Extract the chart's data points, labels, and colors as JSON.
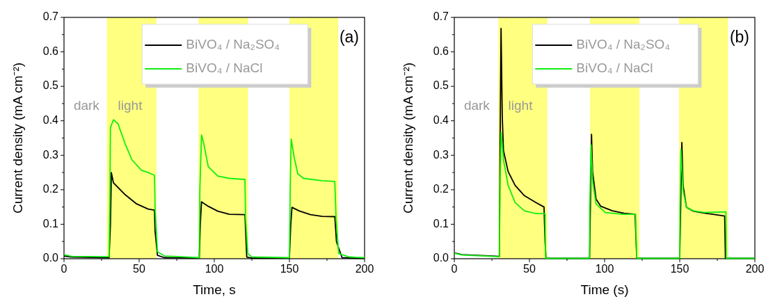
{
  "chart_data": [
    {
      "type": "line",
      "xlabel": "Time, s",
      "ylabel": "Current density (mA cm⁻²)",
      "xlim": [
        0,
        200
      ],
      "ylim": [
        0,
        0.7
      ],
      "xticks": [
        0,
        50,
        100,
        150,
        200
      ],
      "yticks": [
        {
          "value": 0,
          "label": "0.0"
        },
        {
          "value": 0.1,
          "label": "0.1"
        },
        {
          "value": 0.2,
          "label": "0.2"
        },
        {
          "value": 0.3,
          "label": "0.3"
        },
        {
          "value": 0.4,
          "label": "0.4"
        },
        {
          "value": 0.5,
          "label": "0.5"
        },
        {
          "value": 0.6,
          "label": "0.6"
        },
        {
          "value": 0.7,
          "label": "0.7"
        }
      ],
      "legend": "top right",
      "grid": false,
      "line_style": "solid",
      "bands": [
        {
          "axis": "x",
          "from": 28.5,
          "to": 61.5,
          "color": "#ffff80"
        },
        {
          "axis": "x",
          "from": 89.5,
          "to": 122.5,
          "color": "#ffff80"
        },
        {
          "axis": "x",
          "from": 150,
          "to": 182.5,
          "color": "#ffff80"
        }
      ],
      "annotations": [
        "(a)",
        "dark",
        "light"
      ],
      "series": [
        {
          "name": "BiVO₄ / Na₂SO₄",
          "color": "#000000",
          "x": [
            0,
            5,
            30,
            30.9,
            31.5,
            32.9,
            40.6,
            48.3,
            56,
            60.2,
            60.6,
            62.2,
            66.8,
            90,
            90.7,
            91.5,
            96,
            102.3,
            110,
            120.4,
            121.6,
            125,
            150,
            150.9,
            151.7,
            156.3,
            164,
            171.8,
            180.2,
            181.3,
            185,
            200
          ],
          "values": [
            0.008,
            0.005,
            0.003,
            0.1,
            0.25,
            0.22,
            0.186,
            0.159,
            0.144,
            0.141,
            0.08,
            0.01,
            0.003,
            0.002,
            0.1,
            0.165,
            0.152,
            0.138,
            0.129,
            0.128,
            0.005,
            0.002,
            0.002,
            0.1,
            0.149,
            0.139,
            0.128,
            0.123,
            0.122,
            0.05,
            0.003,
            0.001
          ]
        },
        {
          "name": "BiVO₄ / NaCl",
          "color": "#11ee11",
          "x": [
            0,
            5,
            30,
            30.6,
            30.9,
            32.9,
            36,
            40.6,
            45.2,
            51.4,
            56,
            60.2,
            60.6,
            62.2,
            66.8,
            90,
            90.4,
            91.5,
            93,
            96,
            102.3,
            110,
            120.4,
            120.8,
            122.3,
            125,
            150,
            150.5,
            151.2,
            153.2,
            155.6,
            159.4,
            171.8,
            180.2,
            181,
            182.8,
            190,
            200
          ],
          "values": [
            0.012,
            0.007,
            0.006,
            0.2,
            0.38,
            0.403,
            0.391,
            0.334,
            0.287,
            0.257,
            0.25,
            0.242,
            0.15,
            0.02,
            0.008,
            0.003,
            0.2,
            0.359,
            0.334,
            0.267,
            0.24,
            0.233,
            0.23,
            0.12,
            0.015,
            0.005,
            0.003,
            0.2,
            0.347,
            0.293,
            0.246,
            0.233,
            0.226,
            0.224,
            0.12,
            0.015,
            0.005,
            0.003
          ]
        }
      ]
    },
    {
      "type": "line",
      "xlabel": "Time (s)",
      "ylabel": "Current density (mA cm⁻²)",
      "xlim": [
        0,
        200
      ],
      "ylim": [
        0,
        0.7
      ],
      "xticks": [
        0,
        50,
        100,
        150,
        200
      ],
      "yticks": [
        {
          "value": 0,
          "label": "0.0"
        },
        {
          "value": 0.1,
          "label": "0.1"
        },
        {
          "value": 0.2,
          "label": "0.2"
        },
        {
          "value": 0.3,
          "label": "0.3"
        },
        {
          "value": 0.4,
          "label": "0.4"
        },
        {
          "value": 0.5,
          "label": "0.5"
        },
        {
          "value": 0.6,
          "label": "0.6"
        },
        {
          "value": 0.7,
          "label": "0.7"
        }
      ],
      "legend": "top right",
      "grid": false,
      "line_style": "solid",
      "bands": [
        {
          "axis": "x",
          "from": 29.3,
          "to": 61.9,
          "color": "#ffff80"
        },
        {
          "axis": "x",
          "from": 90.3,
          "to": 123.2,
          "color": "#ffff80"
        },
        {
          "axis": "x",
          "from": 149.5,
          "to": 182.2,
          "color": "#ffff80"
        }
      ],
      "annotations": [
        "(b)",
        "dark",
        "light"
      ],
      "series": [
        {
          "name": "BiVO₄ / Na₂SO₄",
          "color": "#000000",
          "x": [
            0,
            5,
            30,
            30.4,
            31.1,
            31.9,
            32.7,
            35.8,
            40.4,
            46.6,
            54.3,
            59.7,
            60.4,
            61,
            90,
            91.3,
            92,
            94.3,
            97.5,
            105.2,
            112.9,
            120.3,
            121.4,
            150,
            151.4,
            152.2,
            154.5,
            159.1,
            166.8,
            179.9,
            180.4,
            200
          ],
          "values": [
            0.017,
            0.012,
            0.007,
            0.3,
            0.668,
            0.414,
            0.314,
            0.253,
            0.213,
            0.183,
            0.163,
            0.15,
            0.05,
            0.001,
            0.001,
            0.361,
            0.253,
            0.173,
            0.152,
            0.139,
            0.132,
            0.129,
            0.001,
            0.001,
            0.337,
            0.213,
            0.149,
            0.138,
            0.132,
            0.124,
            0.001,
            0.001
          ]
        },
        {
          "name": "BiVO₄ / NaCl",
          "color": "#11ee11",
          "x": [
            0,
            5,
            30,
            30.4,
            31.1,
            32.7,
            35.8,
            40.4,
            46.6,
            54.3,
            60.4,
            60.8,
            90,
            90.1,
            91,
            92,
            94.3,
            100.5,
            112,
            120.6,
            121.4,
            150,
            150.2,
            150.8,
            152.2,
            154.5,
            159.1,
            166.8,
            180.7,
            181,
            200
          ],
          "values": [
            0.016,
            0.011,
            0.006,
            0.2,
            0.366,
            0.287,
            0.213,
            0.163,
            0.139,
            0.131,
            0.131,
            0.001,
            0.001,
            0.15,
            0.33,
            0.226,
            0.159,
            0.134,
            0.129,
            0.129,
            0.001,
            0.001,
            0.15,
            0.317,
            0.199,
            0.149,
            0.139,
            0.134,
            0.136,
            0.001,
            0.001
          ]
        }
      ]
    }
  ]
}
